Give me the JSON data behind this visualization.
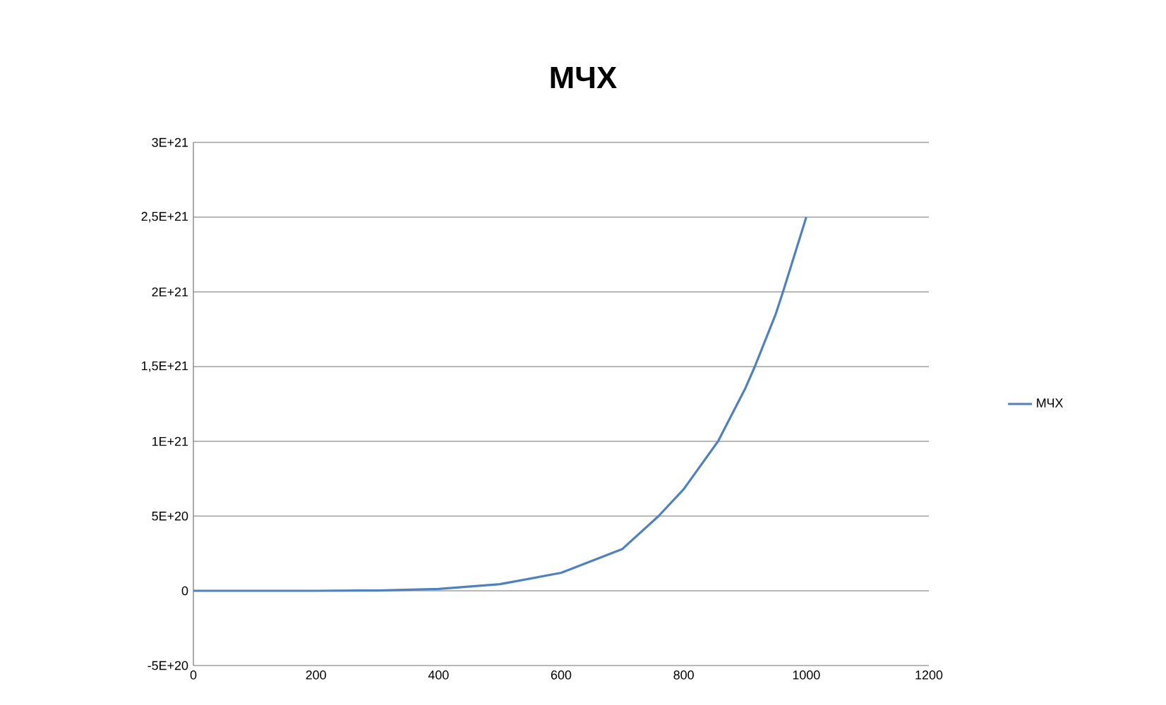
{
  "chart_data": {
    "type": "line",
    "title": "МЧХ",
    "x": [
      0,
      100,
      200,
      300,
      400,
      500,
      600,
      700,
      759,
      800,
      856,
      900,
      916,
      950,
      962,
      1000
    ],
    "series": [
      {
        "name": "МЧХ",
        "color": "#4f81bd",
        "values": [
          0,
          0,
          0,
          2e+18,
          1.2e+19,
          4.4e+19,
          1.2e+20,
          2.8e+20,
          5e+20,
          6.8e+20,
          1e+21,
          1.35e+21,
          1.5e+21,
          1.85e+21,
          2e+21,
          2.5e+21
        ]
      }
    ],
    "xlim": [
      0,
      1200
    ],
    "xticks": [
      0,
      200,
      400,
      600,
      800,
      1000,
      1200
    ],
    "ylim": [
      -5e+20,
      3e+21
    ],
    "yticks": [
      {
        "value": -5e+20,
        "label": "-5E+20"
      },
      {
        "value": 0,
        "label": "0"
      },
      {
        "value": 5e+20,
        "label": "5E+20"
      },
      {
        "value": 1e+21,
        "label": "1E+21"
      },
      {
        "value": 1.5e+21,
        "label": "1,5E+21"
      },
      {
        "value": 2e+21,
        "label": "2E+21"
      },
      {
        "value": 2.5e+21,
        "label": "2,5E+21"
      },
      {
        "value": 3e+21,
        "label": "3E+21"
      }
    ],
    "grid": "y",
    "legend": "right",
    "marker": "none",
    "line_style": "solid"
  }
}
